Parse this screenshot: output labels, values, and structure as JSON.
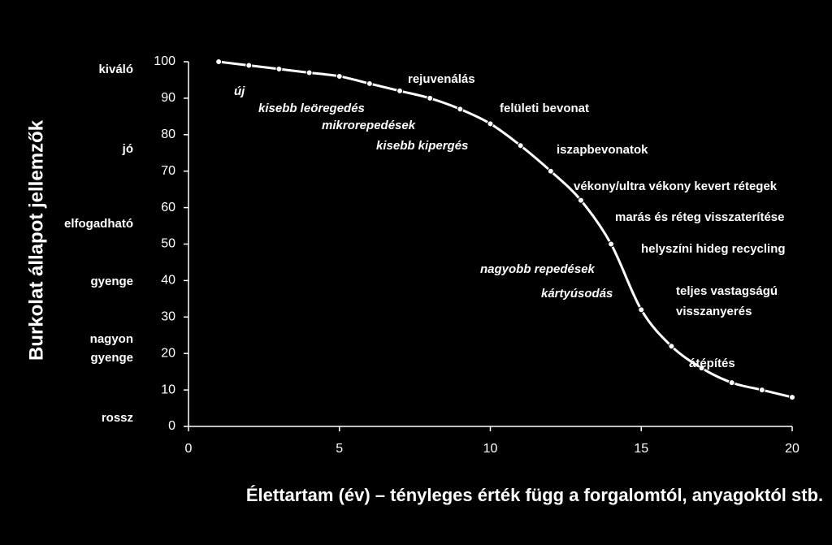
{
  "chart_data": {
    "type": "line",
    "title_y": "Burkolat  állapot jellemzők",
    "title_x": "Élettartam (év) – tényleges érték függ a forgalomtól, anyagoktól stb.",
    "x": [
      1,
      2,
      3,
      4,
      5,
      6,
      7,
      8,
      9,
      10,
      11,
      12,
      13,
      14,
      15,
      16,
      17,
      18,
      19,
      20
    ],
    "series": [
      {
        "color": "#ffffff",
        "values": [
          100,
          99,
          98,
          97,
          96,
          94,
          92,
          90,
          87,
          83,
          77,
          70,
          62,
          50,
          32,
          22,
          16,
          12,
          10,
          8
        ]
      }
    ],
    "xlim": [
      0,
      20
    ],
    "xticks": [
      0,
      5,
      10,
      15,
      20
    ],
    "ylim": [
      0,
      100
    ],
    "yticks": [
      0,
      10,
      20,
      30,
      40,
      50,
      60,
      70,
      80,
      90,
      100
    ],
    "condition_labels": [
      "kiváló",
      "jó",
      "elfogadható",
      "gyenge",
      "nagyon",
      "gyenge",
      "rossz"
    ],
    "annotations": [
      {
        "text": "új",
        "italic": true
      },
      {
        "text": "rejuvenálás",
        "italic": false
      },
      {
        "text": "kisebb leöregedés",
        "italic": true
      },
      {
        "text": "felületi bevonat",
        "italic": false
      },
      {
        "text": "mikrorepedések",
        "italic": true
      },
      {
        "text": "kisebb kipergés",
        "italic": true
      },
      {
        "text": "iszapbevonatok",
        "italic": false
      },
      {
        "text": "vékony/ultra vékony kevert rétegek",
        "italic": false
      },
      {
        "text": "marás és réteg visszaterítése",
        "italic": false
      },
      {
        "text": "helyszíni hideg recycling",
        "italic": false
      },
      {
        "text": "nagyobb repedések",
        "italic": true
      },
      {
        "text": "kártyúsodás",
        "italic": true
      },
      {
        "text": "teljes vastagságú",
        "italic": false
      },
      {
        "text": "visszanyerés",
        "italic": false
      },
      {
        "text": "átépítés",
        "italic": false
      }
    ]
  }
}
